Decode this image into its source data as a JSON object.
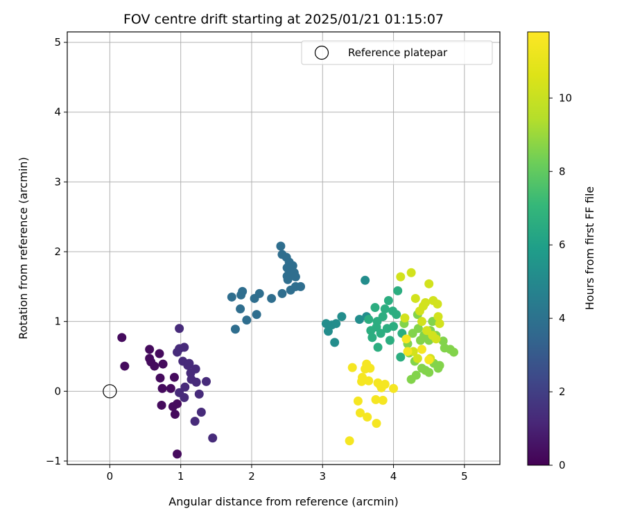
{
  "chart_data": {
    "type": "scatter",
    "title": "FOV centre drift starting at 2025/01/21 01:15:07",
    "xlabel": "Angular distance from reference (arcmin)",
    "ylabel": "Rotation from reference (arcmin)",
    "xlim": [
      -0.6,
      5.5
    ],
    "ylim": [
      -1.05,
      5.15
    ],
    "xticks": [
      0,
      1,
      2,
      3,
      4,
      5
    ],
    "yticks": [
      -1,
      0,
      1,
      2,
      3,
      4,
      5
    ],
    "grid": true,
    "legend": {
      "position": "top-right",
      "entries": [
        "Reference platepar"
      ]
    },
    "reference_point": {
      "label": "Reference platepar",
      "x": 0,
      "y": 0,
      "marker": "open-circle"
    },
    "colorbar": {
      "label": "Hours from first FF file",
      "colormap": "viridis",
      "range": [
        0,
        11.8
      ],
      "ticks": [
        0,
        2,
        4,
        6,
        8,
        10
      ]
    },
    "series": [
      {
        "c": 0.3,
        "points": [
          [
            0.17,
            0.77
          ],
          [
            0.21,
            0.36
          ],
          [
            0.56,
            0.6
          ],
          [
            0.56,
            0.47
          ],
          [
            0.58,
            0.42
          ],
          [
            0.63,
            0.36
          ],
          [
            0.7,
            0.54
          ],
          [
            0.75,
            0.39
          ],
          [
            0.71,
            0.19
          ],
          [
            0.74,
            0.04
          ],
          [
            0.73,
            -0.2
          ],
          [
            0.86,
            0.04
          ],
          [
            0.89,
            -0.22
          ],
          [
            0.92,
            -0.33
          ],
          [
            0.91,
            0.2
          ],
          [
            0.95,
            -0.18
          ],
          [
            0.95,
            -0.9
          ]
        ]
      },
      {
        "c": 1.3,
        "points": [
          [
            0.95,
            0.56
          ],
          [
            0.98,
            0.61
          ],
          [
            0.98,
            0.9
          ],
          [
            1.05,
            0.63
          ],
          [
            1.03,
            0.43
          ],
          [
            1.06,
            0.06
          ],
          [
            1.05,
            -0.09
          ],
          [
            0.98,
            -0.02
          ],
          [
            1.1,
            0.37
          ],
          [
            1.12,
            0.4
          ],
          [
            1.14,
            0.26
          ],
          [
            1.15,
            0.17
          ],
          [
            1.21,
            0.32
          ],
          [
            1.22,
            0.13
          ],
          [
            1.26,
            -0.04
          ],
          [
            1.2,
            -0.43
          ],
          [
            1.29,
            -0.3
          ],
          [
            1.36,
            0.14
          ],
          [
            1.45,
            -0.67
          ]
        ]
      },
      {
        "c": 3.8,
        "points": [
          [
            1.72,
            1.35
          ],
          [
            1.77,
            0.89
          ],
          [
            1.84,
            1.18
          ],
          [
            1.85,
            1.38
          ],
          [
            1.87,
            1.43
          ],
          [
            1.93,
            1.02
          ],
          [
            2.04,
            1.33
          ],
          [
            2.07,
            1.1
          ],
          [
            2.11,
            1.4
          ],
          [
            2.28,
            1.33
          ],
          [
            2.41,
            2.08
          ],
          [
            2.43,
            1.96
          ],
          [
            2.43,
            1.4
          ],
          [
            2.49,
            1.92
          ],
          [
            2.5,
            1.77
          ],
          [
            2.5,
            1.65
          ],
          [
            2.51,
            1.6
          ],
          [
            2.53,
            1.85
          ],
          [
            2.53,
            1.7
          ],
          [
            2.55,
            1.45
          ],
          [
            2.58,
            1.8
          ],
          [
            2.6,
            1.7
          ],
          [
            2.62,
            1.64
          ],
          [
            2.62,
            1.5
          ],
          [
            2.69,
            1.5
          ]
        ]
      },
      {
        "c": 5.2,
        "points": [
          [
            3.05,
            0.97
          ],
          [
            3.08,
            0.86
          ],
          [
            3.13,
            0.95
          ],
          [
            3.17,
            0.7
          ],
          [
            3.19,
            0.97
          ],
          [
            3.27,
            1.07
          ],
          [
            3.52,
            1.03
          ],
          [
            3.6,
            1.59
          ],
          [
            3.62,
            1.07
          ]
        ]
      },
      {
        "c": 6.6,
        "points": [
          [
            3.65,
            1.03
          ],
          [
            3.68,
            0.87
          ],
          [
            3.7,
            0.77
          ],
          [
            3.74,
            1.2
          ],
          [
            3.76,
            0.92
          ],
          [
            3.77,
            1.0
          ],
          [
            3.78,
            0.63
          ],
          [
            3.82,
            0.83
          ],
          [
            3.85,
            1.07
          ],
          [
            3.88,
            1.18
          ],
          [
            3.91,
            0.9
          ],
          [
            3.93,
            1.3
          ],
          [
            3.95,
            0.73
          ],
          [
            3.99,
            1.15
          ],
          [
            4.0,
            0.93
          ],
          [
            4.04,
            1.1
          ],
          [
            4.06,
            1.44
          ],
          [
            4.1,
            0.49
          ],
          [
            4.12,
            0.83
          ]
        ]
      },
      {
        "c": 8.6,
        "points": [
          [
            4.15,
            0.97
          ],
          [
            4.2,
            0.68
          ],
          [
            4.22,
            0.55
          ],
          [
            4.25,
            0.17
          ],
          [
            4.27,
            0.83
          ],
          [
            4.3,
            0.43
          ],
          [
            4.32,
            0.23
          ],
          [
            4.34,
            1.1
          ],
          [
            4.35,
            0.9
          ],
          [
            4.38,
            0.73
          ],
          [
            4.4,
            0.33
          ],
          [
            4.43,
            0.8
          ],
          [
            4.45,
            0.3
          ],
          [
            4.5,
            0.27
          ],
          [
            4.5,
            0.73
          ],
          [
            4.52,
            0.87
          ],
          [
            4.55,
            1.0
          ],
          [
            4.57,
            0.4
          ],
          [
            4.6,
            0.8
          ],
          [
            4.63,
            0.33
          ],
          [
            4.65,
            0.37
          ],
          [
            4.7,
            0.72
          ],
          [
            4.72,
            0.62
          ],
          [
            4.8,
            0.6
          ],
          [
            4.85,
            0.56
          ]
        ]
      },
      {
        "c": 10.3,
        "points": [
          [
            4.1,
            1.64
          ],
          [
            4.16,
            1.05
          ],
          [
            4.25,
            1.7
          ],
          [
            4.28,
            0.57
          ],
          [
            4.31,
            1.33
          ],
          [
            4.34,
            0.47
          ],
          [
            4.37,
            1.15
          ],
          [
            4.4,
            1.0
          ],
          [
            4.42,
            1.22
          ],
          [
            4.45,
            1.27
          ],
          [
            4.47,
            0.87
          ],
          [
            4.5,
            1.54
          ],
          [
            4.52,
            0.47
          ],
          [
            4.56,
            1.3
          ],
          [
            4.62,
            1.25
          ],
          [
            4.63,
            1.07
          ],
          [
            4.65,
            0.97
          ],
          [
            4.6,
            0.75
          ],
          [
            4.55,
            0.8
          ]
        ]
      },
      {
        "c": 11.5,
        "points": [
          [
            3.38,
            -0.71
          ],
          [
            3.42,
            0.34
          ],
          [
            3.5,
            -0.14
          ],
          [
            3.53,
            -0.31
          ],
          [
            3.55,
            0.14
          ],
          [
            3.56,
            0.2
          ],
          [
            3.6,
            0.32
          ],
          [
            3.62,
            0.39
          ],
          [
            3.63,
            -0.37
          ],
          [
            3.65,
            0.15
          ],
          [
            3.67,
            0.33
          ],
          [
            3.75,
            -0.12
          ],
          [
            3.76,
            -0.46
          ],
          [
            3.78,
            0.12
          ],
          [
            3.81,
            0.09
          ],
          [
            3.83,
            0.05
          ],
          [
            3.85,
            -0.13
          ],
          [
            3.88,
            0.1
          ],
          [
            4.0,
            0.04
          ],
          [
            4.18,
            0.75
          ],
          [
            4.2,
            0.57
          ],
          [
            4.4,
            0.6
          ],
          [
            4.5,
            0.45
          ]
        ]
      }
    ]
  }
}
